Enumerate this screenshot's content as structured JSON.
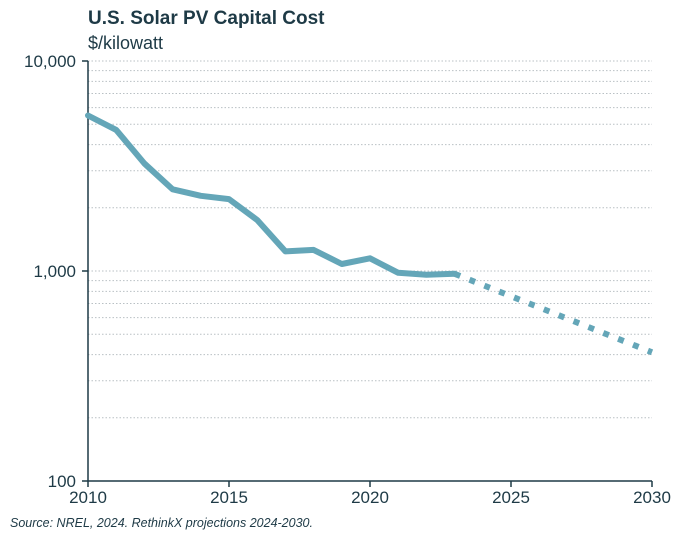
{
  "chart_data": {
    "type": "line",
    "title": "U.S. Solar PV Capital Cost",
    "subtitle": "$/kilowatt",
    "xlabel": "",
    "ylabel": "",
    "xlim": [
      2010,
      2030
    ],
    "ylim": [
      100,
      10000
    ],
    "y_scale": "log",
    "grid": "horizontal minor dotted",
    "x_ticks": [
      {
        "value": 2010,
        "label": "2010"
      },
      {
        "value": 2015,
        "label": "2015"
      },
      {
        "value": 2020,
        "label": "2020"
      },
      {
        "value": 2025,
        "label": "2025"
      },
      {
        "value": 2030,
        "label": "2030"
      }
    ],
    "y_ticks": [
      {
        "value": 100,
        "label": "100"
      },
      {
        "value": 1000,
        "label": "1,000"
      },
      {
        "value": 10000,
        "label": "10,000"
      }
    ],
    "series": [
      {
        "style": "solid",
        "color": "#64a6b8",
        "x": [
          2010,
          2011,
          2012,
          2013,
          2014,
          2015,
          2016,
          2017,
          2018,
          2019,
          2020,
          2021,
          2022,
          2023
        ],
        "y": [
          5500,
          4700,
          3250,
          2450,
          2280,
          2200,
          1750,
          1240,
          1260,
          1080,
          1150,
          980,
          960,
          970
        ]
      },
      {
        "style": "dotted",
        "color": "#64a6b8",
        "x": [
          2023,
          2030
        ],
        "y": [
          970,
          410
        ]
      }
    ]
  },
  "source": "Source: NREL, 2024. RethinkX projections 2024-2030."
}
